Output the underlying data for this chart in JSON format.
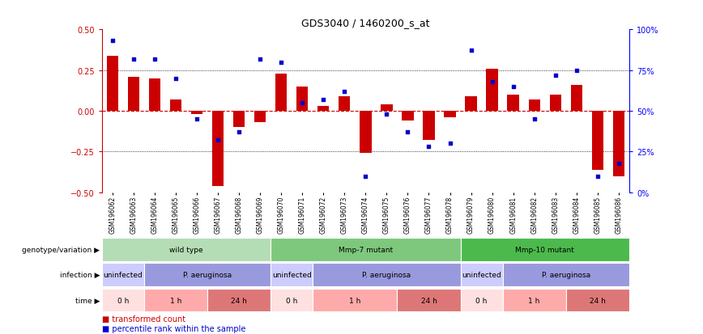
{
  "title": "GDS3040 / 1460200_s_at",
  "samples": [
    "GSM196062",
    "GSM196063",
    "GSM196064",
    "GSM196065",
    "GSM196066",
    "GSM196067",
    "GSM196068",
    "GSM196069",
    "GSM196070",
    "GSM196071",
    "GSM196072",
    "GSM196073",
    "GSM196074",
    "GSM196075",
    "GSM196076",
    "GSM196077",
    "GSM196078",
    "GSM196079",
    "GSM196080",
    "GSM196081",
    "GSM196082",
    "GSM196083",
    "GSM196084",
    "GSM196085",
    "GSM196086"
  ],
  "bar_values": [
    0.34,
    0.21,
    0.2,
    0.07,
    -0.02,
    -0.46,
    -0.1,
    -0.07,
    0.23,
    0.15,
    0.03,
    0.09,
    -0.26,
    0.04,
    -0.06,
    -0.18,
    -0.04,
    0.09,
    0.26,
    0.1,
    0.07,
    0.1,
    0.16,
    -0.36,
    -0.4
  ],
  "dot_values": [
    0.93,
    0.82,
    0.82,
    0.7,
    0.45,
    0.32,
    0.37,
    0.82,
    0.8,
    0.55,
    0.57,
    0.62,
    0.1,
    0.48,
    0.37,
    0.28,
    0.3,
    0.87,
    0.68,
    0.65,
    0.45,
    0.72,
    0.75,
    0.1,
    0.18
  ],
  "bar_color": "#cc0000",
  "dot_color": "#0000cc",
  "ylim": [
    -0.5,
    0.5
  ],
  "y2lim": [
    0,
    1.0
  ],
  "yticks": [
    -0.5,
    -0.25,
    0,
    0.25,
    0.5
  ],
  "y2ticks": [
    0,
    0.25,
    0.5,
    0.75,
    1.0
  ],
  "y2ticklabels": [
    "0%",
    "25%",
    "50%",
    "75%",
    "100%"
  ],
  "hline_color": "#cc0000",
  "hline_dotted_color": "#000000",
  "genotype_groups": [
    {
      "label": "wild type",
      "start": 0,
      "end": 8,
      "color": "#b5ddb5"
    },
    {
      "label": "Mmp-7 mutant",
      "start": 8,
      "end": 17,
      "color": "#7dc87d"
    },
    {
      "label": "Mmp-10 mutant",
      "start": 17,
      "end": 25,
      "color": "#4cb94c"
    }
  ],
  "infection_groups": [
    {
      "label": "uninfected",
      "start": 0,
      "end": 2,
      "color": "#ccccff"
    },
    {
      "label": "P. aeruginosa",
      "start": 2,
      "end": 8,
      "color": "#9999dd"
    },
    {
      "label": "uninfected",
      "start": 8,
      "end": 10,
      "color": "#ccccff"
    },
    {
      "label": "P. aeruginosa",
      "start": 10,
      "end": 17,
      "color": "#9999dd"
    },
    {
      "label": "uninfected",
      "start": 17,
      "end": 19,
      "color": "#ccccff"
    },
    {
      "label": "P. aeruginosa",
      "start": 19,
      "end": 25,
      "color": "#9999dd"
    }
  ],
  "time_groups": [
    {
      "label": "0 h",
      "start": 0,
      "end": 2,
      "color": "#ffe0e0"
    },
    {
      "label": "1 h",
      "start": 2,
      "end": 5,
      "color": "#ffaaaa"
    },
    {
      "label": "24 h",
      "start": 5,
      "end": 8,
      "color": "#dd7777"
    },
    {
      "label": "0 h",
      "start": 8,
      "end": 10,
      "color": "#ffe0e0"
    },
    {
      "label": "1 h",
      "start": 10,
      "end": 14,
      "color": "#ffaaaa"
    },
    {
      "label": "24 h",
      "start": 14,
      "end": 17,
      "color": "#dd7777"
    },
    {
      "label": "0 h",
      "start": 17,
      "end": 19,
      "color": "#ffe0e0"
    },
    {
      "label": "1 h",
      "start": 19,
      "end": 22,
      "color": "#ffaaaa"
    },
    {
      "label": "24 h",
      "start": 22,
      "end": 25,
      "color": "#dd7777"
    }
  ],
  "row_labels": [
    "genotype/variation",
    "infection",
    "time"
  ],
  "legend_bar_label": "transformed count",
  "legend_dot_label": "percentile rank within the sample"
}
